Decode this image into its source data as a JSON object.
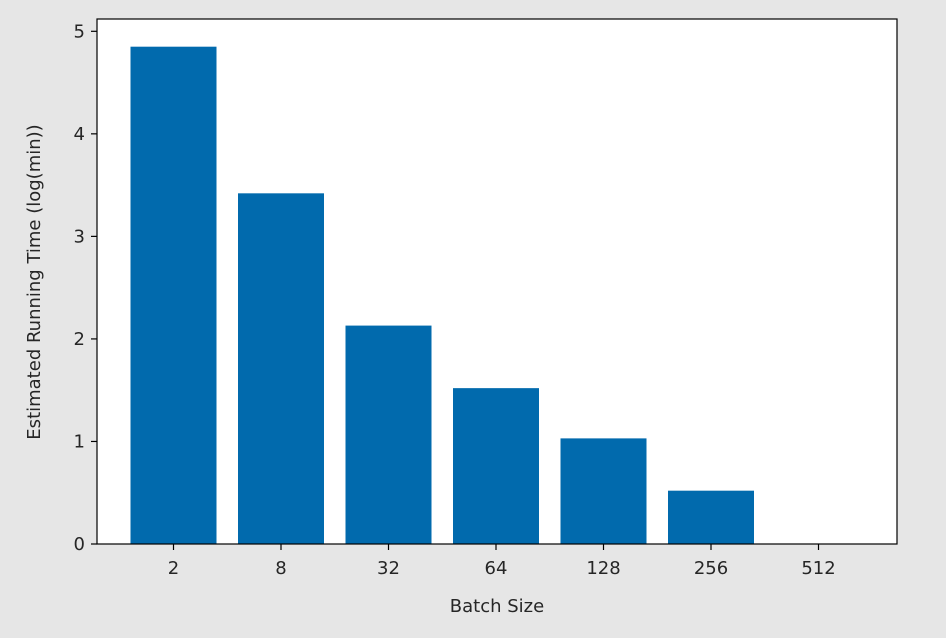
{
  "chart_data": {
    "type": "bar",
    "title": "",
    "xlabel": "Batch Size",
    "ylabel": "Estimated Running Time (log(min))",
    "categories": [
      "2",
      "8",
      "32",
      "64",
      "128",
      "256",
      "512"
    ],
    "values": [
      4.85,
      3.42,
      2.13,
      1.52,
      1.03,
      0.52,
      0.0
    ],
    "ylim": [
      0,
      5.12
    ],
    "yticks": [
      0,
      1,
      2,
      3,
      4,
      5
    ],
    "bar_color": "#016aad",
    "grid": false,
    "legend": "none"
  }
}
